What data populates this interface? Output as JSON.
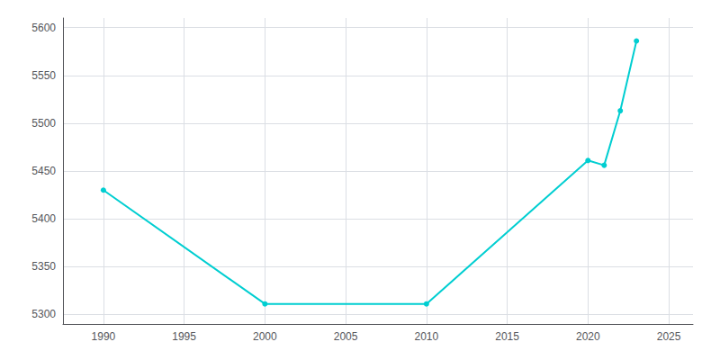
{
  "chart_data": {
    "type": "line",
    "x": [
      1990,
      2000,
      2010,
      2020,
      2021,
      2022,
      2023
    ],
    "values": [
      5430,
      5311,
      5311,
      5461,
      5456,
      5513,
      5586
    ],
    "color": "#00CED1",
    "marker": "circle",
    "xlim": [
      1987.5,
      2026.5
    ],
    "xticks": [
      1990,
      1995,
      2000,
      2005,
      2010,
      2015,
      2020,
      2025
    ],
    "ylim": [
      5290,
      5610
    ],
    "yticks": [
      5300,
      5350,
      5400,
      5450,
      5500,
      5550,
      5600
    ],
    "grid": true
  }
}
